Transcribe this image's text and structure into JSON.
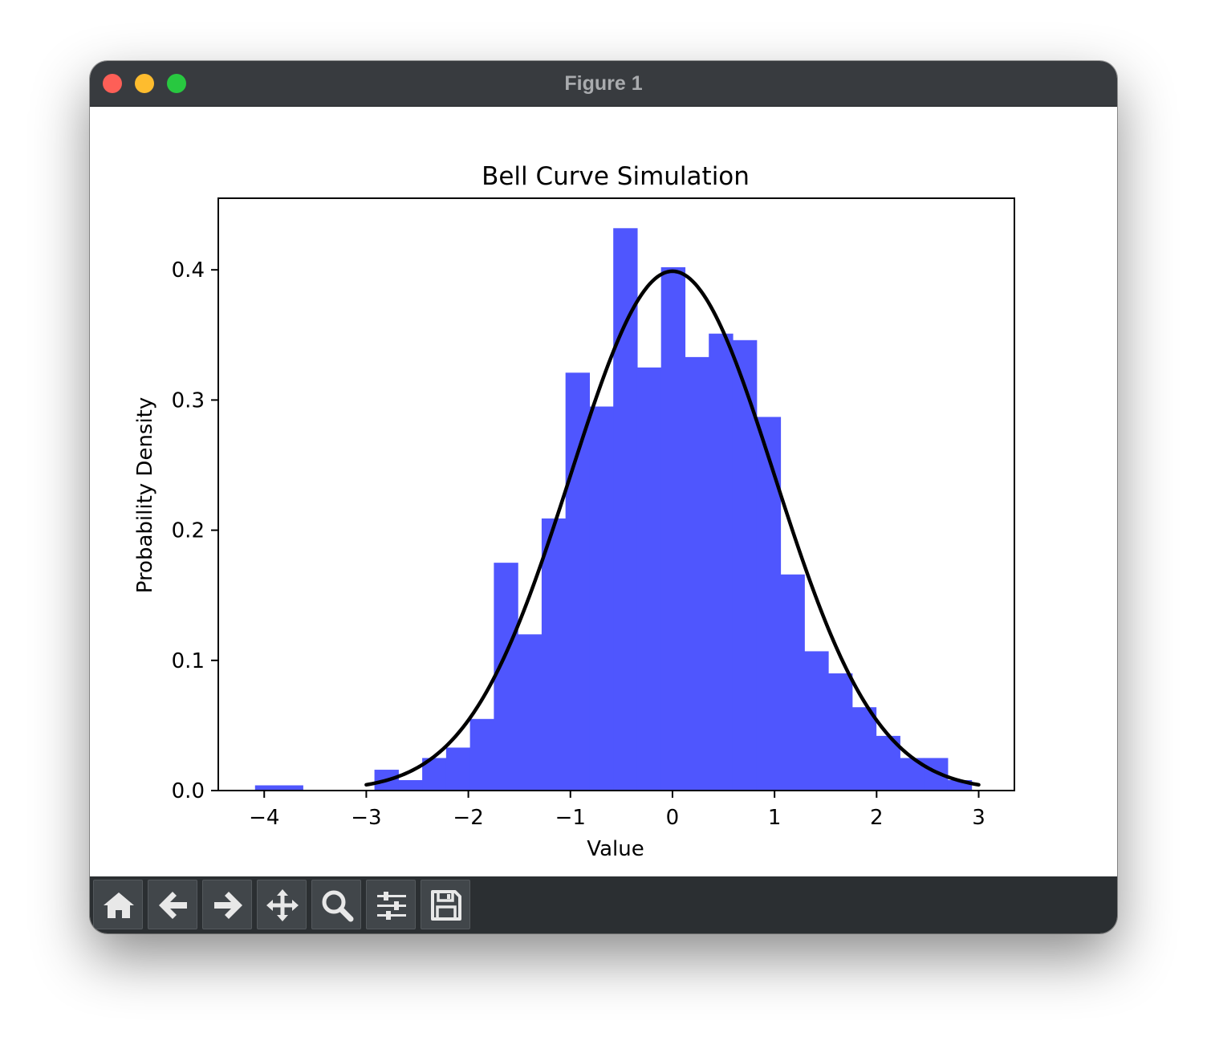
{
  "window": {
    "title": "Figure 1"
  },
  "toolbar": {
    "buttons": [
      {
        "name": "home-button",
        "icon": "home-icon"
      },
      {
        "name": "back-button",
        "icon": "arrow-left-icon"
      },
      {
        "name": "forward-button",
        "icon": "arrow-right-icon"
      },
      {
        "name": "pan-button",
        "icon": "move-icon"
      },
      {
        "name": "zoom-button",
        "icon": "magnifier-icon"
      },
      {
        "name": "configure-subplots-button",
        "icon": "sliders-icon"
      },
      {
        "name": "save-button",
        "icon": "floppy-disk-icon"
      }
    ]
  },
  "chart_data": {
    "type": "bar",
    "title": "Bell Curve Simulation",
    "xlabel": "Value",
    "ylabel": "Probability Density",
    "xlim": [
      -4.45,
      3.35
    ],
    "ylim": [
      0,
      0.455
    ],
    "xticks": [
      {
        "value": -4,
        "label": "−4"
      },
      {
        "value": -3,
        "label": "−3"
      },
      {
        "value": -2,
        "label": "−2"
      },
      {
        "value": -1,
        "label": "−1"
      },
      {
        "value": 0,
        "label": "0"
      },
      {
        "value": 1,
        "label": "1"
      },
      {
        "value": 2,
        "label": "2"
      },
      {
        "value": 3,
        "label": "3"
      }
    ],
    "yticks": [
      {
        "value": 0.0,
        "label": "0.0"
      },
      {
        "value": 0.1,
        "label": "0.1"
      },
      {
        "value": 0.2,
        "label": "0.2"
      },
      {
        "value": 0.3,
        "label": "0.3"
      },
      {
        "value": 0.4,
        "label": "0.4"
      }
    ],
    "grid": false,
    "legend": null,
    "histogram": {
      "color": "#4f56fe",
      "bin_width": 0.234,
      "bins": [
        {
          "x0": -4.09,
          "height": 0.004
        },
        {
          "x0": -3.856,
          "height": 0.004
        },
        {
          "x0": -3.622,
          "height": 0.0
        },
        {
          "x0": -3.388,
          "height": 0.0
        },
        {
          "x0": -3.154,
          "height": 0.0
        },
        {
          "x0": -2.92,
          "height": 0.016
        },
        {
          "x0": -2.686,
          "height": 0.008
        },
        {
          "x0": -2.452,
          "height": 0.025
        },
        {
          "x0": -2.218,
          "height": 0.033
        },
        {
          "x0": -1.984,
          "height": 0.055
        },
        {
          "x0": -1.75,
          "height": 0.175
        },
        {
          "x0": -1.516,
          "height": 0.12
        },
        {
          "x0": -1.282,
          "height": 0.209
        },
        {
          "x0": -1.048,
          "height": 0.321
        },
        {
          "x0": -0.814,
          "height": 0.295
        },
        {
          "x0": -0.58,
          "height": 0.432
        },
        {
          "x0": -0.346,
          "height": 0.325
        },
        {
          "x0": -0.112,
          "height": 0.402
        },
        {
          "x0": 0.122,
          "height": 0.333
        },
        {
          "x0": 0.356,
          "height": 0.351
        },
        {
          "x0": 0.59,
          "height": 0.346
        },
        {
          "x0": 0.824,
          "height": 0.287
        },
        {
          "x0": 1.058,
          "height": 0.166
        },
        {
          "x0": 1.292,
          "height": 0.107
        },
        {
          "x0": 1.526,
          "height": 0.09
        },
        {
          "x0": 1.76,
          "height": 0.064
        },
        {
          "x0": 1.994,
          "height": 0.042
        },
        {
          "x0": 2.228,
          "height": 0.025
        },
        {
          "x0": 2.462,
          "height": 0.025
        },
        {
          "x0": 2.696,
          "height": 0.008
        }
      ]
    },
    "curve": {
      "type": "line",
      "color": "#000000",
      "function": "normal_pdf",
      "mean": 0,
      "std": 1,
      "x_range": [
        -3,
        3
      ]
    }
  }
}
